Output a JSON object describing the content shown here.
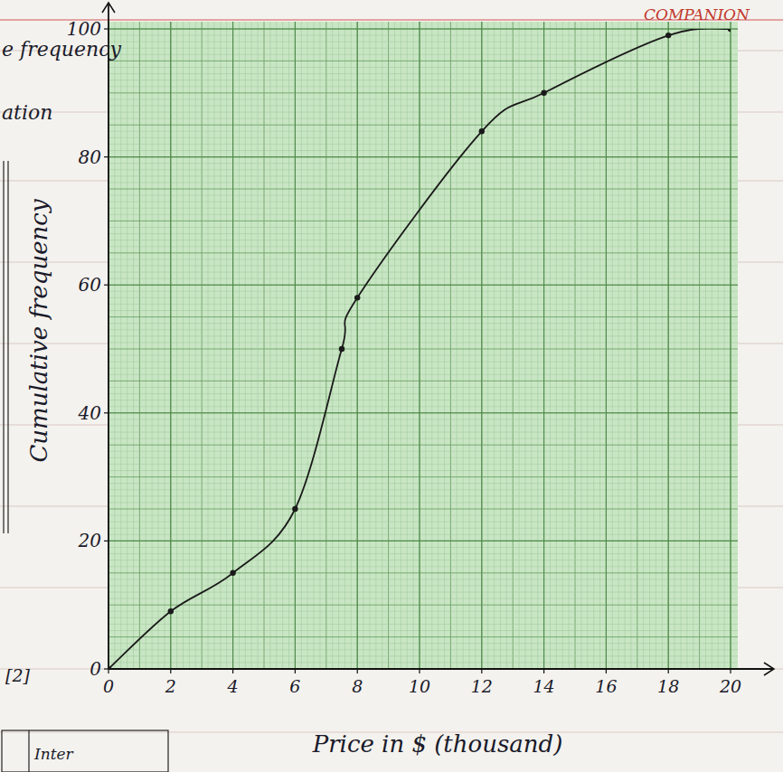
{
  "chart_data": {
    "type": "line",
    "x_label": "Price in $ (thousand)",
    "y_label": "Cumulative frequency",
    "x": [
      0,
      2,
      4,
      6,
      7.5,
      8,
      12,
      14,
      18,
      20
    ],
    "values": [
      0,
      9,
      15,
      25,
      50,
      58,
      84,
      90,
      99,
      100
    ],
    "color": "#1a1a1a",
    "marker": "dot",
    "xlim": [
      0,
      20
    ],
    "xticks": [
      0,
      2,
      4,
      6,
      8,
      10,
      12,
      14,
      16,
      18,
      20
    ],
    "ylim": [
      0,
      100
    ],
    "yticks": [
      0,
      20,
      40,
      60,
      80,
      100
    ],
    "grid": true,
    "annotations": [
      "e frequency",
      "ation",
      "[2]",
      "Inter",
      "COMPANION"
    ]
  }
}
